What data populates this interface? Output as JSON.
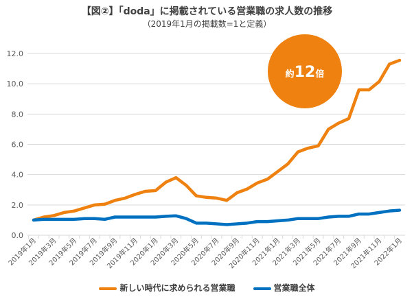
{
  "chart_data": {
    "type": "line",
    "title": "【図②】「doda」に掲載されている営業職の求人数の推移",
    "subtitle": "（2019年1月の掲載数=1と定義）",
    "ylim": [
      0,
      12
    ],
    "yticks": [
      "0.0",
      "2.0",
      "4.0",
      "6.0",
      "8.0",
      "10.0",
      "12.0"
    ],
    "xtick_labels": [
      "2019年1月",
      "2019年3月",
      "2019年5月",
      "2019年7月",
      "2019年9月",
      "2019年11月",
      "2020年1月",
      "2020年3月",
      "2020年5月",
      "2020年7月",
      "2020年9月",
      "2020年11月",
      "2021年1月",
      "2021年3月",
      "2021年5月",
      "2021年7月",
      "2021年9月",
      "2021年11月",
      "2022年1月"
    ],
    "grid": true,
    "legend_position": "bottom",
    "annotation": {
      "prefix": "約",
      "value": "12",
      "suffix": "倍",
      "color": "#EE810F"
    },
    "series": [
      {
        "name": "新しい時代に求められる営業職",
        "color": "#EE810F",
        "values": [
          1.0,
          1.2,
          1.3,
          1.5,
          1.6,
          1.8,
          2.0,
          2.05,
          2.3,
          2.45,
          2.7,
          2.9,
          2.95,
          3.5,
          3.8,
          3.3,
          2.6,
          2.5,
          2.45,
          2.3,
          2.8,
          3.05,
          3.45,
          3.7,
          4.2,
          4.7,
          5.5,
          5.75,
          5.9,
          7.0,
          7.4,
          7.7,
          9.6,
          9.6,
          10.15,
          11.3,
          11.55
        ]
      },
      {
        "name": "営業職全体",
        "color": "#0070C0",
        "values": [
          1.0,
          1.05,
          1.05,
          1.05,
          1.05,
          1.1,
          1.1,
          1.05,
          1.2,
          1.2,
          1.2,
          1.2,
          1.2,
          1.25,
          1.28,
          1.1,
          0.8,
          0.8,
          0.75,
          0.7,
          0.75,
          0.8,
          0.9,
          0.9,
          0.95,
          1.0,
          1.1,
          1.1,
          1.1,
          1.2,
          1.25,
          1.25,
          1.4,
          1.4,
          1.5,
          1.6,
          1.65
        ]
      }
    ]
  }
}
